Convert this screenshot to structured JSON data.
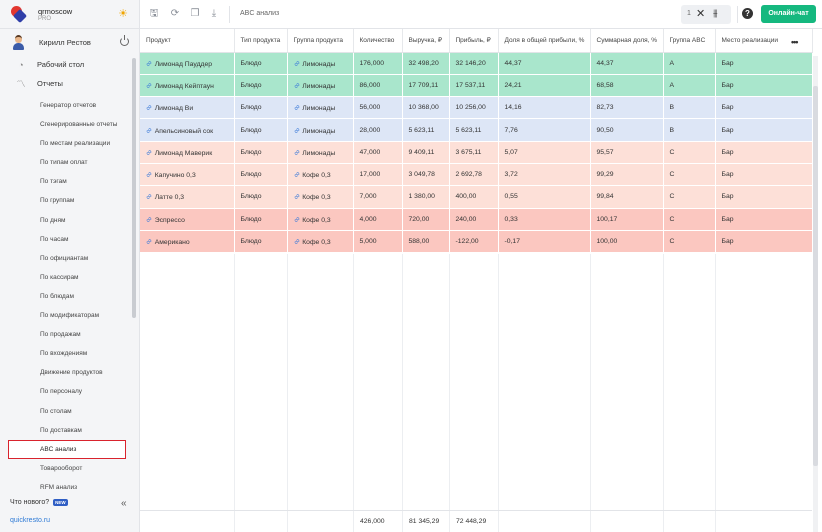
{
  "brand": {
    "name": "qrmoscow",
    "plan": "PRO"
  },
  "user": {
    "name": "Кирилл Рестов"
  },
  "nav_top": [
    {
      "label": "Рабочий стол",
      "icon": "dashboard-icon"
    },
    {
      "label": "Отчеты",
      "icon": "reports-icon"
    }
  ],
  "nav_items": [
    {
      "label": "Генератор отчетов"
    },
    {
      "label": "Сгенерированные отчеты"
    },
    {
      "label": "По местам реализации"
    },
    {
      "label": "По типам оплат"
    },
    {
      "label": "По тэгам"
    },
    {
      "label": "По группам"
    },
    {
      "label": "По дням"
    },
    {
      "label": "По часам"
    },
    {
      "label": "По официантам"
    },
    {
      "label": "По кассирам"
    },
    {
      "label": "По блюдам"
    },
    {
      "label": "По модификаторам"
    },
    {
      "label": "По продажам"
    },
    {
      "label": "По вхождениям"
    },
    {
      "label": "Движение продуктов"
    },
    {
      "label": "По персоналу"
    },
    {
      "label": "По столам"
    },
    {
      "label": "По доставкам"
    },
    {
      "label": "ABC анализ",
      "active": true
    },
    {
      "label": "Товарооборот"
    },
    {
      "label": "RFM анализ"
    }
  ],
  "whats_new": {
    "label": "Что нового?",
    "badge": "NEW"
  },
  "site": "quickresto.ru",
  "toolbar": {
    "title": "ABC анализ",
    "page_num": "1",
    "chat_label": "Онлайн-чат",
    "help": "?"
  },
  "table": {
    "columns": [
      "Продукт",
      "Тип продукта",
      "Группа продукта",
      "Количество",
      "Выручка, ₽",
      "Прибыль, ₽",
      "Доля в общей прибыли, %",
      "Суммарная доля, %",
      "Группа ABC",
      "Место реализации"
    ],
    "rows": [
      {
        "cls": "grp-a",
        "cells": [
          "Лимонад Пауддер",
          "Блюдо",
          "Лимонады",
          "176,000",
          "32 498,20",
          "32 146,20",
          "44,37",
          "44,37",
          "A",
          "Бар"
        ]
      },
      {
        "cls": "grp-a",
        "cells": [
          "Лимонад Кейптаун",
          "Блюдо",
          "Лимонады",
          "86,000",
          "17 709,11",
          "17 537,11",
          "24,21",
          "68,58",
          "A",
          "Бар"
        ]
      },
      {
        "cls": "grp-b",
        "cells": [
          "Лимонад Ви",
          "Блюдо",
          "Лимонады",
          "56,000",
          "10 368,00",
          "10 256,00",
          "14,16",
          "82,73",
          "B",
          "Бар"
        ]
      },
      {
        "cls": "grp-b",
        "cells": [
          "Апельсиновый сок",
          "Блюдо",
          "Лимонады",
          "28,000",
          "5 623,11",
          "5 623,11",
          "7,76",
          "90,50",
          "B",
          "Бар"
        ]
      },
      {
        "cls": "grp-c",
        "cells": [
          "Лимонад Маверик",
          "Блюдо",
          "Лимонады",
          "47,000",
          "9 409,11",
          "3 675,11",
          "5,07",
          "95,57",
          "C",
          "Бар"
        ]
      },
      {
        "cls": "grp-c",
        "cells": [
          "Капучино 0,3",
          "Блюдо",
          "Кофе 0,3",
          "17,000",
          "3 049,78",
          "2 692,78",
          "3,72",
          "99,29",
          "C",
          "Бар"
        ]
      },
      {
        "cls": "grp-c",
        "cells": [
          "Латте 0,3",
          "Блюдо",
          "Кофе 0,3",
          "7,000",
          "1 380,00",
          "400,00",
          "0,55",
          "99,84",
          "C",
          "Бар"
        ]
      },
      {
        "cls": "grp-n",
        "cells": [
          "Эспрессо",
          "Блюдо",
          "Кофе 0,3",
          "4,000",
          "720,00",
          "240,00",
          "0,33",
          "100,17",
          "C",
          "Бар"
        ]
      },
      {
        "cls": "grp-n",
        "cells": [
          "Американо",
          "Блюдо",
          "Кофе 0,3",
          "5,000",
          "588,00",
          "-122,00",
          "-0,17",
          "100,00",
          "C",
          "Бар"
        ]
      }
    ],
    "totals": {
      "quantity": "426,000",
      "revenue": "81 345,29",
      "profit": "72 448,29"
    }
  }
}
